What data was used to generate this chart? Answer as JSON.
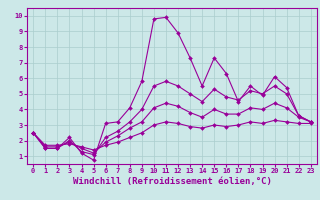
{
  "xlabel": "Windchill (Refroidissement éolien,°C)",
  "xlim": [
    -0.5,
    23.5
  ],
  "ylim": [
    0.5,
    10.5
  ],
  "xticks": [
    0,
    1,
    2,
    3,
    4,
    5,
    6,
    7,
    8,
    9,
    10,
    11,
    12,
    13,
    14,
    15,
    16,
    17,
    18,
    19,
    20,
    21,
    22,
    23
  ],
  "yticks": [
    1,
    2,
    3,
    4,
    5,
    6,
    7,
    8,
    9,
    10
  ],
  "background_color": "#cce8e8",
  "grid_color": "#aacece",
  "line_color": "#990099",
  "lines": [
    {
      "x": [
        0,
        1,
        2,
        3,
        4,
        5,
        6,
        7,
        8,
        9,
        10,
        11,
        12,
        13,
        14,
        15,
        16,
        17,
        18,
        19,
        20,
        21,
        22,
        23
      ],
      "y": [
        2.5,
        1.5,
        1.5,
        2.2,
        1.2,
        0.75,
        3.1,
        3.2,
        4.1,
        5.8,
        9.8,
        9.9,
        8.9,
        7.3,
        5.5,
        7.3,
        6.3,
        4.5,
        5.5,
        4.9,
        6.1,
        5.4,
        3.6,
        3.2
      ]
    },
    {
      "x": [
        0,
        1,
        2,
        3,
        4,
        5,
        6,
        7,
        8,
        9,
        10,
        11,
        12,
        13,
        14,
        15,
        16,
        17,
        18,
        19,
        20,
        21,
        22,
        23
      ],
      "y": [
        2.5,
        1.5,
        1.5,
        2.0,
        1.3,
        1.1,
        2.2,
        2.6,
        3.2,
        4.0,
        5.5,
        5.8,
        5.5,
        5.0,
        4.5,
        5.3,
        4.8,
        4.6,
        5.2,
        5.0,
        5.5,
        5.0,
        3.6,
        3.2
      ]
    },
    {
      "x": [
        0,
        1,
        2,
        3,
        4,
        5,
        6,
        7,
        8,
        9,
        10,
        11,
        12,
        13,
        14,
        15,
        16,
        17,
        18,
        19,
        20,
        21,
        22,
        23
      ],
      "y": [
        2.5,
        1.6,
        1.6,
        1.9,
        1.5,
        1.2,
        1.9,
        2.3,
        2.8,
        3.2,
        4.1,
        4.4,
        4.2,
        3.8,
        3.5,
        4.0,
        3.7,
        3.7,
        4.1,
        4.0,
        4.4,
        4.1,
        3.5,
        3.2
      ]
    },
    {
      "x": [
        0,
        1,
        2,
        3,
        4,
        5,
        6,
        7,
        8,
        9,
        10,
        11,
        12,
        13,
        14,
        15,
        16,
        17,
        18,
        19,
        20,
        21,
        22,
        23
      ],
      "y": [
        2.5,
        1.7,
        1.7,
        1.8,
        1.6,
        1.4,
        1.7,
        1.9,
        2.2,
        2.5,
        3.0,
        3.2,
        3.1,
        2.9,
        2.8,
        3.0,
        2.9,
        3.0,
        3.2,
        3.1,
        3.3,
        3.2,
        3.1,
        3.1
      ]
    }
  ],
  "marker": "D",
  "markersize": 2.0,
  "linewidth": 0.8,
  "tick_fontsize": 5.0,
  "xlabel_fontsize": 6.5
}
